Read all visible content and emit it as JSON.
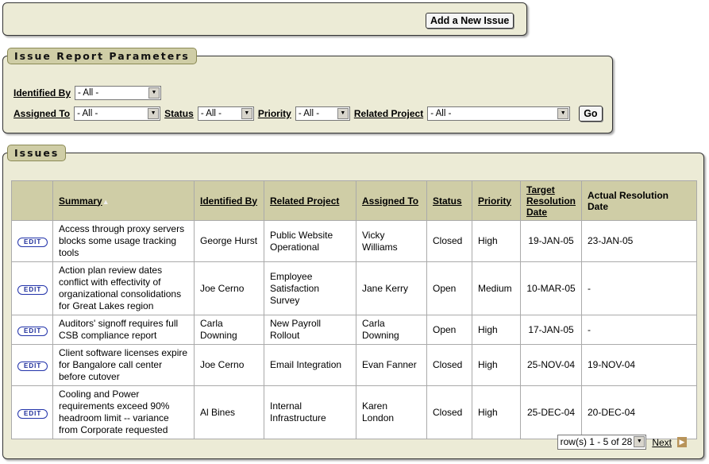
{
  "top": {
    "add_button": "Add a New Issue"
  },
  "params": {
    "title": "Issue Report Parameters",
    "identified_by": {
      "label": "Identified By",
      "value": "- All -"
    },
    "assigned_to": {
      "label": "Assigned To",
      "value": "- All -"
    },
    "status": {
      "label": "Status",
      "value": "- All -"
    },
    "priority": {
      "label": "Priority",
      "value": "- All -"
    },
    "related_project": {
      "label": "Related Project",
      "value": "- All -"
    },
    "go": "Go"
  },
  "issues": {
    "title": "Issues",
    "columns": [
      "",
      "Summary",
      "Identified By",
      "Related Project",
      "Assigned To",
      "Status",
      "Priority",
      "Target Resolution Date",
      "Actual Resolution Date"
    ],
    "edit_label": "EDIT",
    "rows": [
      [
        "Access through proxy servers blocks some usage tracking tools",
        "George Hurst",
        "Public Website Operational",
        "Vicky Williams",
        "Closed",
        "High",
        "19-JAN-05",
        "23-JAN-05"
      ],
      [
        "Action plan review dates conflict with effectivity of organizational consolidations for Great Lakes region",
        "Joe Cerno",
        "Employee Satisfaction Survey",
        "Jane Kerry",
        "Open",
        "Medium",
        "10-MAR-05",
        "-"
      ],
      [
        "Auditors' signoff requires full CSB compliance report",
        "Carla Downing",
        "New Payroll Rollout",
        "Carla Downing",
        "Open",
        "High",
        "17-JAN-05",
        "-"
      ],
      [
        "Client software licenses expire for Bangalore call center before cutover",
        "Joe Cerno",
        "Email Integration",
        "Evan Fanner",
        "Closed",
        "High",
        "25-NOV-04",
        "19-NOV-04"
      ],
      [
        "Cooling and Power requirements exceed 90% headroom limit -- variance from Corporate requested",
        "Al Bines",
        "Internal Infrastructure",
        "Karen London",
        "Closed",
        "High",
        "25-DEC-04",
        "20-DEC-04"
      ]
    ],
    "pagination": {
      "range": "row(s) 1 - 5 of 28",
      "next": "Next"
    }
  }
}
